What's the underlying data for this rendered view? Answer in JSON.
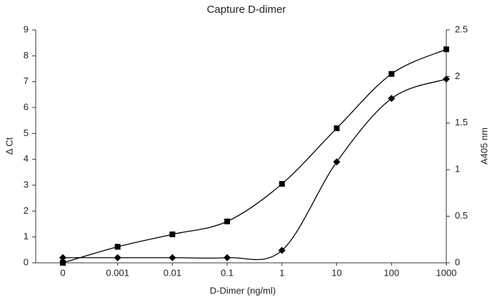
{
  "chart_data": {
    "type": "line",
    "title": "Capture D-dimer",
    "x_label": "D-Dimer (ng/ml)",
    "y_label": "Δ Ct",
    "y2_label": "A405 nm",
    "categories": [
      "0",
      "0.001",
      "0.01",
      "0.1",
      "1",
      "10",
      "100",
      "1000"
    ],
    "series": [
      {
        "color": "#000000",
        "marker": "square",
        "values": [
          0,
          0.62,
          1.1,
          1.6,
          3.05,
          5.2,
          7.3,
          8.25
        ]
      },
      {
        "color": "#000000",
        "marker": "diamond",
        "values": [
          0.2,
          0.2,
          0.2,
          0.2,
          0.48,
          3.9,
          6.35,
          7.1
        ]
      }
    ],
    "ylim": [
      0,
      9
    ],
    "yticks": [
      0,
      1,
      2,
      3,
      4,
      5,
      6,
      7,
      8,
      9
    ],
    "y2lim": [
      0,
      2.5
    ],
    "y2ticks": [
      0,
      0.5,
      1,
      1.5,
      2,
      2.5
    ],
    "grid": false,
    "smooth": true
  }
}
